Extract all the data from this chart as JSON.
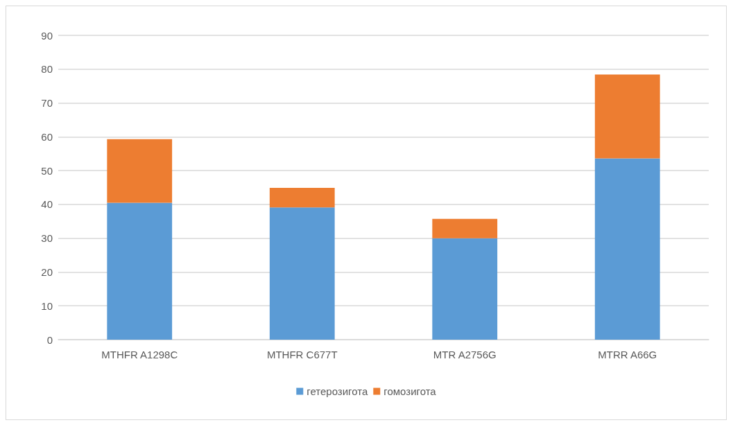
{
  "chart_data": {
    "type": "bar",
    "stacked": true,
    "categories": [
      "MTHFR A1298C",
      "MTHFR C677T",
      "MTR A2756G",
      "MTRR A66G"
    ],
    "series": [
      {
        "name": "гетерозигота",
        "color": "#5b9bd5",
        "values": [
          40.5,
          39.1,
          30,
          53.6
        ]
      },
      {
        "name": "гомозигота",
        "color": "#ed7d31",
        "values": [
          18.8,
          5.8,
          5.7,
          24.8
        ]
      }
    ],
    "ylim": [
      0,
      90
    ],
    "yticks": [
      0,
      10,
      20,
      30,
      40,
      50,
      60,
      70,
      80,
      90
    ],
    "grid": "y",
    "legend": "bottom"
  }
}
